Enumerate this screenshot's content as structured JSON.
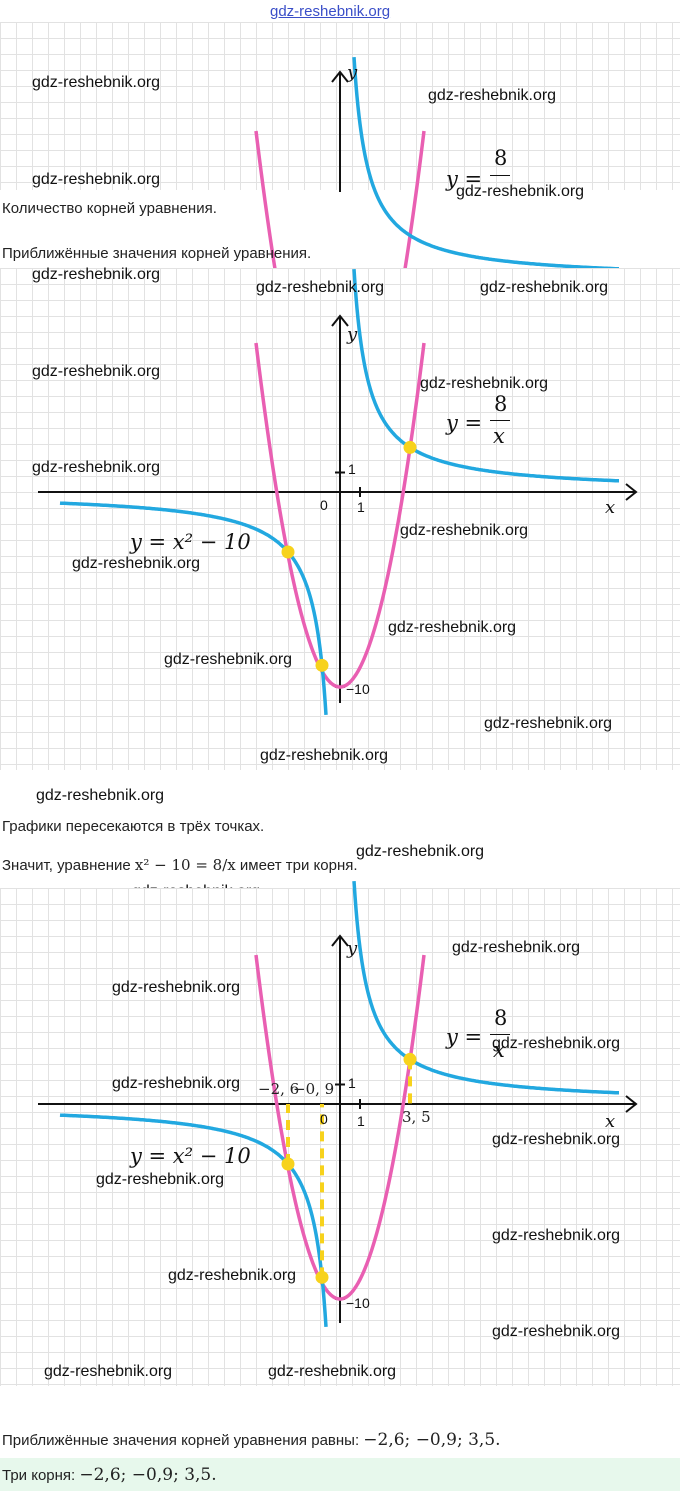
{
  "site": "gdz-reshebnik.org",
  "watermark": "gdz-reshebnik.org",
  "texts": {
    "count": "Количество корней уравнения.",
    "approx": "Приближённые значения корней уравнения.",
    "intersect": "Графики пересекаются в трёх точках.",
    "conclusion_pre": "Значит, уравнение ",
    "conclusion_math": "x² − 10 = 8/x",
    "conclusion_post": " имеет три корня.",
    "final_pre": "Приближённые значения корней уравнения равны: ",
    "final_math": "−2,6;  −0,9;  3,5.",
    "answer_pre": "Три корня: ",
    "answer_math": "−2,6;  −0,9;  3,5."
  },
  "labels": {
    "y_axis": "y",
    "x_axis": "x",
    "zero": "0",
    "one_x": "1",
    "one_y": "1",
    "minus_ten": "−10",
    "hyperbola": "y =",
    "hyperbola_num": "8",
    "hyperbola_den": "x",
    "parabola": "y = x² − 10",
    "root1": "−2, 6",
    "root2": "−0, 9",
    "root3": "3, 5"
  },
  "colors": {
    "parabola": "#e95fb2",
    "hyperbola": "#22a8e0",
    "intersection": "#f7d21c",
    "answer_bg": "#e7f8ec",
    "link": "#3a4ec8"
  },
  "chart_data": {
    "type": "line",
    "series": [
      {
        "expr": "x^2 - 10"
      },
      {
        "expr": "8/x"
      }
    ],
    "roots": [
      -2.6,
      -0.9,
      3.5
    ],
    "y_intercept_min": -10
  }
}
